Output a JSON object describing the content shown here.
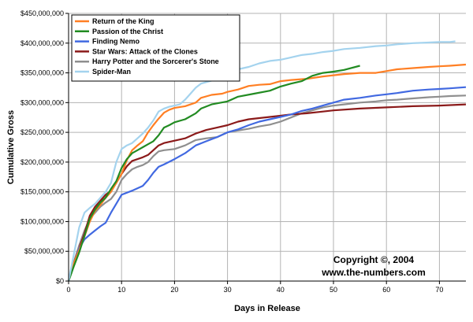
{
  "chart_data": {
    "type": "line",
    "title": "",
    "xlabel": "Days in Release",
    "ylabel": "Cumulative Gross",
    "xlim": [
      0,
      75
    ],
    "ylim": [
      0,
      450000000
    ],
    "x_ticks": [
      0,
      10,
      20,
      30,
      40,
      50,
      60,
      70
    ],
    "x_tick_labels": [
      "0",
      "10",
      "20",
      "30",
      "40",
      "50",
      "60",
      "70"
    ],
    "y_ticks": [
      0,
      50000000,
      100000000,
      150000000,
      200000000,
      250000000,
      300000000,
      350000000,
      400000000,
      450000000
    ],
    "y_tick_labels": [
      "$0",
      "$50,000,000",
      "$100,000,000",
      "$150,000,000",
      "$200,000,000",
      "$250,000,000",
      "$300,000,000",
      "$350,000,000",
      "$400,000,000",
      "$450,000,000"
    ],
    "grid": true,
    "legend_position": "top-left",
    "series": [
      {
        "name": "Return of the King",
        "color": "#ff7f24",
        "points": [
          [
            0,
            0
          ],
          [
            1,
            30000000
          ],
          [
            2,
            52000000
          ],
          [
            3,
            75000000
          ],
          [
            4,
            100000000
          ],
          [
            5,
            118000000
          ],
          [
            6,
            128000000
          ],
          [
            7,
            140000000
          ],
          [
            8,
            150000000
          ],
          [
            9,
            165000000
          ],
          [
            10,
            180000000
          ],
          [
            11,
            203000000
          ],
          [
            12,
            220000000
          ],
          [
            13,
            228000000
          ],
          [
            14,
            235000000
          ],
          [
            15,
            250000000
          ],
          [
            16,
            262000000
          ],
          [
            17,
            273000000
          ],
          [
            18,
            283000000
          ],
          [
            19,
            288000000
          ],
          [
            20,
            291000000
          ],
          [
            22,
            294000000
          ],
          [
            24,
            300000000
          ],
          [
            25,
            308000000
          ],
          [
            27,
            313000000
          ],
          [
            29,
            315000000
          ],
          [
            30,
            318000000
          ],
          [
            32,
            322000000
          ],
          [
            34,
            328000000
          ],
          [
            36,
            330000000
          ],
          [
            38,
            331000000
          ],
          [
            40,
            336000000
          ],
          [
            42,
            338000000
          ],
          [
            45,
            340000000
          ],
          [
            48,
            344000000
          ],
          [
            50,
            346000000
          ],
          [
            52,
            348000000
          ],
          [
            55,
            350000000
          ],
          [
            58,
            350000000
          ],
          [
            60,
            353000000
          ],
          [
            62,
            356000000
          ],
          [
            65,
            358000000
          ],
          [
            68,
            360000000
          ],
          [
            70,
            361000000
          ],
          [
            72,
            362000000
          ],
          [
            75,
            364000000
          ]
        ]
      },
      {
        "name": "Passion of the Christ",
        "color": "#228b22",
        "points": [
          [
            0,
            0
          ],
          [
            1,
            25000000
          ],
          [
            2,
            48000000
          ],
          [
            3,
            76000000
          ],
          [
            4,
            105000000
          ],
          [
            5,
            120000000
          ],
          [
            6,
            132000000
          ],
          [
            7,
            140000000
          ],
          [
            8,
            155000000
          ],
          [
            9,
            168000000
          ],
          [
            10,
            190000000
          ],
          [
            11,
            205000000
          ],
          [
            12,
            215000000
          ],
          [
            13,
            220000000
          ],
          [
            14,
            225000000
          ],
          [
            15,
            230000000
          ],
          [
            16,
            235000000
          ],
          [
            17,
            245000000
          ],
          [
            18,
            258000000
          ],
          [
            19,
            262000000
          ],
          [
            20,
            267000000
          ],
          [
            22,
            272000000
          ],
          [
            24,
            282000000
          ],
          [
            25,
            290000000
          ],
          [
            27,
            297000000
          ],
          [
            30,
            302000000
          ],
          [
            32,
            310000000
          ],
          [
            35,
            315000000
          ],
          [
            38,
            320000000
          ],
          [
            40,
            327000000
          ],
          [
            42,
            332000000
          ],
          [
            44,
            336000000
          ],
          [
            46,
            345000000
          ],
          [
            48,
            350000000
          ],
          [
            50,
            352000000
          ],
          [
            52,
            355000000
          ],
          [
            55,
            362000000
          ]
        ]
      },
      {
        "name": "Finding Nemo",
        "color": "#4169e1",
        "points": [
          [
            0,
            0
          ],
          [
            1,
            28000000
          ],
          [
            2,
            55000000
          ],
          [
            3,
            70000000
          ],
          [
            4,
            78000000
          ],
          [
            5,
            85000000
          ],
          [
            6,
            92000000
          ],
          [
            7,
            98000000
          ],
          [
            8,
            115000000
          ],
          [
            9,
            130000000
          ],
          [
            10,
            145000000
          ],
          [
            12,
            152000000
          ],
          [
            14,
            160000000
          ],
          [
            15,
            170000000
          ],
          [
            16,
            182000000
          ],
          [
            17,
            192000000
          ],
          [
            18,
            196000000
          ],
          [
            20,
            205000000
          ],
          [
            22,
            215000000
          ],
          [
            24,
            228000000
          ],
          [
            26,
            235000000
          ],
          [
            28,
            242000000
          ],
          [
            30,
            250000000
          ],
          [
            32,
            255000000
          ],
          [
            34,
            262000000
          ],
          [
            36,
            268000000
          ],
          [
            38,
            272000000
          ],
          [
            40,
            276000000
          ],
          [
            42,
            280000000
          ],
          [
            44,
            286000000
          ],
          [
            46,
            290000000
          ],
          [
            48,
            295000000
          ],
          [
            50,
            300000000
          ],
          [
            52,
            305000000
          ],
          [
            55,
            308000000
          ],
          [
            58,
            312000000
          ],
          [
            60,
            314000000
          ],
          [
            62,
            316000000
          ],
          [
            65,
            320000000
          ],
          [
            68,
            322000000
          ],
          [
            70,
            323000000
          ],
          [
            72,
            324000000
          ],
          [
            75,
            326000000
          ]
        ]
      },
      {
        "name": "Star Wars: Attack of the Clones",
        "color": "#8b1a1a",
        "points": [
          [
            0,
            0
          ],
          [
            1,
            30000000
          ],
          [
            2,
            55000000
          ],
          [
            3,
            80000000
          ],
          [
            4,
            110000000
          ],
          [
            5,
            125000000
          ],
          [
            6,
            135000000
          ],
          [
            7,
            145000000
          ],
          [
            8,
            152000000
          ],
          [
            9,
            165000000
          ],
          [
            10,
            180000000
          ],
          [
            11,
            193000000
          ],
          [
            12,
            202000000
          ],
          [
            14,
            208000000
          ],
          [
            15,
            212000000
          ],
          [
            16,
            220000000
          ],
          [
            17,
            228000000
          ],
          [
            18,
            232000000
          ],
          [
            20,
            236000000
          ],
          [
            22,
            240000000
          ],
          [
            24,
            248000000
          ],
          [
            26,
            254000000
          ],
          [
            28,
            258000000
          ],
          [
            30,
            262000000
          ],
          [
            32,
            268000000
          ],
          [
            34,
            272000000
          ],
          [
            36,
            274000000
          ],
          [
            38,
            276000000
          ],
          [
            40,
            278000000
          ],
          [
            42,
            280000000
          ],
          [
            45,
            282000000
          ],
          [
            48,
            285000000
          ],
          [
            50,
            287000000
          ],
          [
            55,
            290000000
          ],
          [
            60,
            292000000
          ],
          [
            65,
            294000000
          ],
          [
            70,
            295000000
          ],
          [
            75,
            297000000
          ]
        ]
      },
      {
        "name": "Harry Potter and the Sorcerer's Stone",
        "color": "#8f8f8f",
        "points": [
          [
            0,
            0
          ],
          [
            1,
            32000000
          ],
          [
            2,
            60000000
          ],
          [
            3,
            85000000
          ],
          [
            4,
            105000000
          ],
          [
            5,
            115000000
          ],
          [
            6,
            125000000
          ],
          [
            7,
            132000000
          ],
          [
            8,
            138000000
          ],
          [
            9,
            150000000
          ],
          [
            10,
            170000000
          ],
          [
            11,
            180000000
          ],
          [
            12,
            188000000
          ],
          [
            13,
            192000000
          ],
          [
            14,
            195000000
          ],
          [
            15,
            200000000
          ],
          [
            16,
            210000000
          ],
          [
            17,
            218000000
          ],
          [
            18,
            220000000
          ],
          [
            20,
            222000000
          ],
          [
            22,
            228000000
          ],
          [
            24,
            237000000
          ],
          [
            26,
            240000000
          ],
          [
            28,
            242000000
          ],
          [
            30,
            250000000
          ],
          [
            32,
            253000000
          ],
          [
            34,
            256000000
          ],
          [
            36,
            260000000
          ],
          [
            38,
            263000000
          ],
          [
            40,
            268000000
          ],
          [
            42,
            275000000
          ],
          [
            44,
            282000000
          ],
          [
            46,
            287000000
          ],
          [
            48,
            292000000
          ],
          [
            50,
            295000000
          ],
          [
            52,
            297000000
          ],
          [
            55,
            300000000
          ],
          [
            58,
            302000000
          ],
          [
            60,
            304000000
          ],
          [
            62,
            305000000
          ],
          [
            65,
            307000000
          ],
          [
            68,
            309000000
          ],
          [
            70,
            310000000
          ],
          [
            72,
            311000000
          ],
          [
            75,
            312000000
          ]
        ]
      },
      {
        "name": "Spider-Man",
        "color": "#a4d3ee",
        "points": [
          [
            0,
            0
          ],
          [
            1,
            45000000
          ],
          [
            2,
            90000000
          ],
          [
            3,
            115000000
          ],
          [
            4,
            123000000
          ],
          [
            5,
            130000000
          ],
          [
            6,
            140000000
          ],
          [
            7,
            150000000
          ],
          [
            8,
            165000000
          ],
          [
            9,
            200000000
          ],
          [
            10,
            222000000
          ],
          [
            11,
            228000000
          ],
          [
            12,
            232000000
          ],
          [
            13,
            240000000
          ],
          [
            14,
            248000000
          ],
          [
            15,
            258000000
          ],
          [
            16,
            270000000
          ],
          [
            17,
            285000000
          ],
          [
            18,
            290000000
          ],
          [
            19,
            293000000
          ],
          [
            20,
            295000000
          ],
          [
            21,
            297000000
          ],
          [
            22,
            305000000
          ],
          [
            23,
            315000000
          ],
          [
            24,
            325000000
          ],
          [
            25,
            332000000
          ],
          [
            27,
            337000000
          ],
          [
            29,
            345000000
          ],
          [
            30,
            352000000
          ],
          [
            32,
            356000000
          ],
          [
            34,
            360000000
          ],
          [
            36,
            366000000
          ],
          [
            38,
            370000000
          ],
          [
            40,
            372000000
          ],
          [
            42,
            376000000
          ],
          [
            44,
            380000000
          ],
          [
            46,
            382000000
          ],
          [
            48,
            385000000
          ],
          [
            50,
            387000000
          ],
          [
            52,
            390000000
          ],
          [
            55,
            392000000
          ],
          [
            58,
            395000000
          ],
          [
            60,
            396000000
          ],
          [
            62,
            398000000
          ],
          [
            65,
            400000000
          ],
          [
            68,
            401000000
          ],
          [
            70,
            402000000
          ],
          [
            72,
            402000000
          ],
          [
            73,
            403000000
          ]
        ]
      }
    ],
    "annotations": [
      "Copyright ©, 2004",
      "www.the-numbers.com"
    ]
  }
}
